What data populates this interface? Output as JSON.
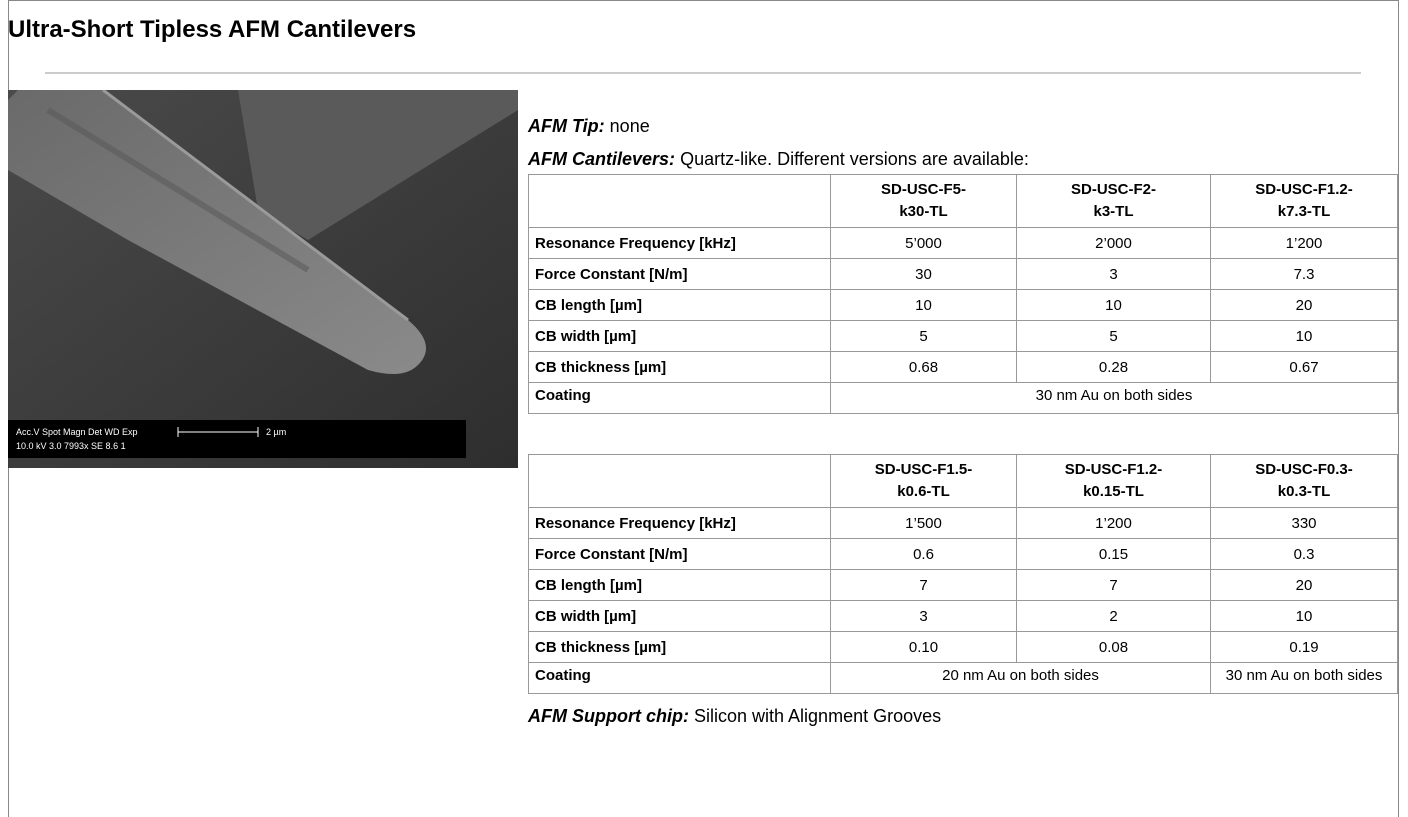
{
  "header": {
    "title": "Ultra-Short Tipless AFM Cantilevers"
  },
  "image": {
    "info_line_1": "Acc.V  Spot Magn   Det  WD  Exp",
    "info_line_2": "10.0 kV 3.0  7993x   SE  8.6   1",
    "scale_label": "2 µm"
  },
  "tip": {
    "label": "AFM Tip:",
    "text": "none"
  },
  "cantilevers": {
    "label": "AFM Cantilevers:",
    "text": "Quartz-like. Different versions are available:"
  },
  "tables": [
    {
      "headers": [
        [
          "SD-USC-F5-",
          "k30-TL"
        ],
        [
          "SD-USC-F2-",
          "k3-TL"
        ],
        [
          "SD-USC-F1.2-",
          "k7.3-TL"
        ]
      ],
      "rows": [
        {
          "label": "Resonance Frequency [kHz]",
          "cells": [
            "5’000",
            "2’000",
            "1’200"
          ]
        },
        {
          "label": "Force Constant [N/m]",
          "cells": [
            "30",
            "3",
            "7.3"
          ]
        },
        {
          "label": "CB length [µm]",
          "cells": [
            "10",
            "10",
            "20"
          ]
        },
        {
          "label": "CB width [µm]",
          "cells": [
            "5",
            "5",
            "10"
          ]
        },
        {
          "label": "CB thickness [µm]",
          "cells": [
            "0.68",
            "0.28",
            "0.67"
          ]
        },
        {
          "label": "Coating",
          "cells": [
            "30 nm Au on both sides"
          ]
        }
      ]
    },
    {
      "headers": [
        [
          "SD-USC-F1.5-",
          "k0.6-TL"
        ],
        [
          "SD-USC-F1.2-",
          "k0.15-TL"
        ],
        [
          "SD-USC-F0.3-",
          "k0.3-TL"
        ]
      ],
      "rows": [
        {
          "label": "Resonance Frequency [kHz]",
          "cells": [
            "1’500",
            "1’200",
            "330"
          ]
        },
        {
          "label": "Force Constant [N/m]",
          "cells": [
            "0.6",
            "0.15",
            "0.3"
          ]
        },
        {
          "label": "CB length [µm]",
          "cells": [
            "7",
            "7",
            "20"
          ]
        },
        {
          "label": "CB width [µm]",
          "cells": [
            "3",
            "2",
            "10"
          ]
        },
        {
          "label": "CB thickness [µm]",
          "cells": [
            "0.10",
            "0.08",
            "0.19"
          ]
        },
        {
          "label": "Coating",
          "cells": [
            "20 nm Au on both sides",
            "30 nm Au on both sides"
          ]
        }
      ]
    }
  ],
  "support_chip": {
    "label": "AFM Support chip:",
    "text": "Silicon with Alignment Grooves"
  }
}
